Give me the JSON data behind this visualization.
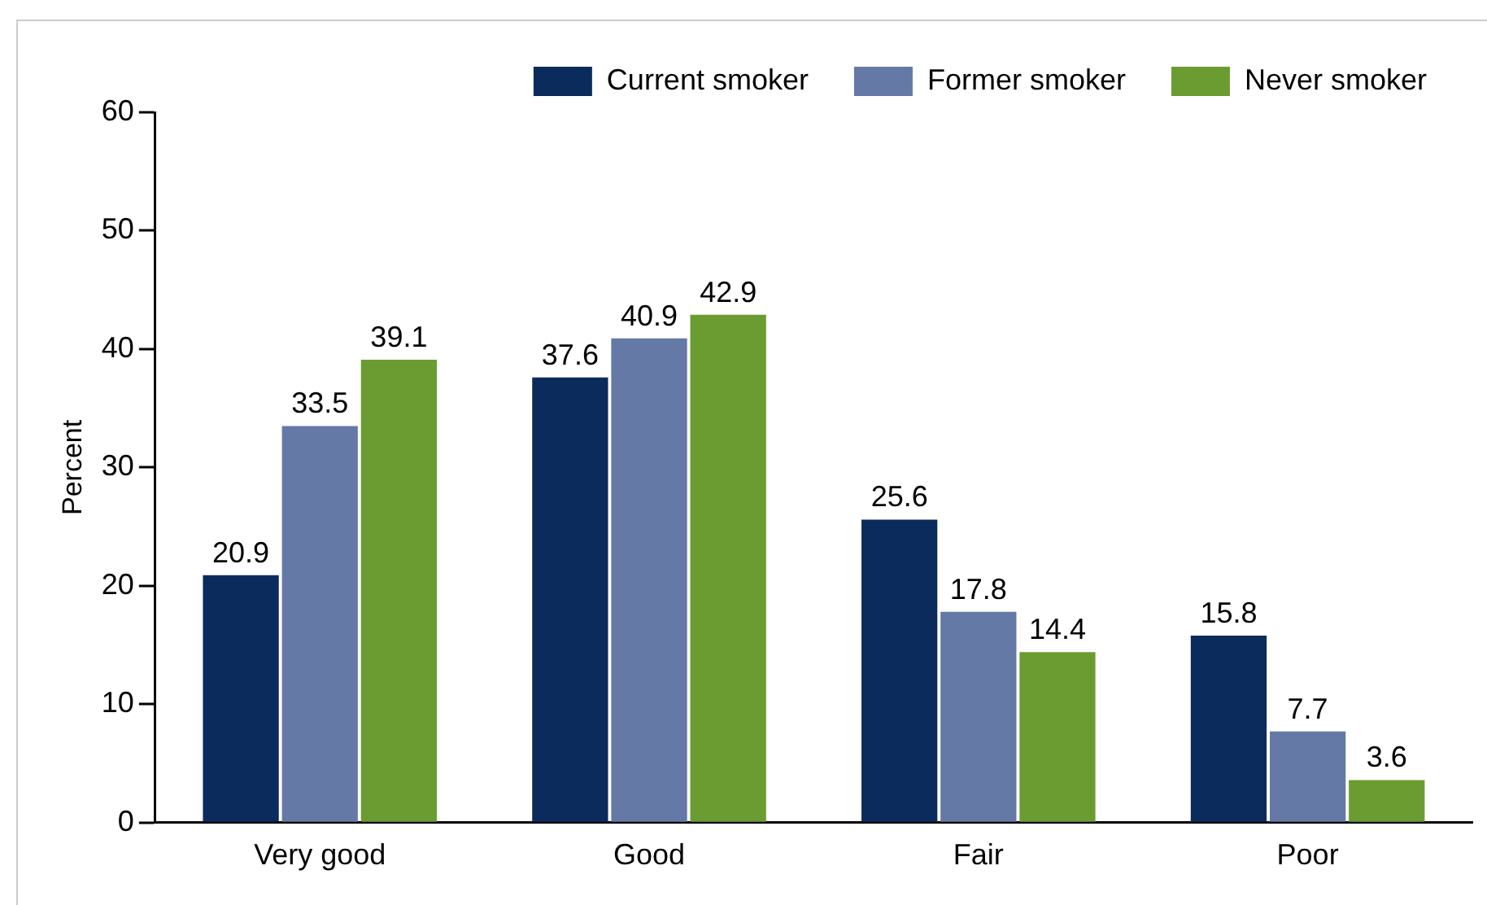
{
  "chart_data": {
    "type": "bar",
    "ylabel": "Percent",
    "categories": [
      "Very good",
      "Good",
      "Fair",
      "Poor"
    ],
    "series": [
      {
        "name": "Current smoker",
        "color": "#0a2b5c",
        "values": [
          20.9,
          37.6,
          25.6,
          15.8
        ]
      },
      {
        "name": "Former smoker",
        "color": "#6479a6",
        "values": [
          33.5,
          40.9,
          17.8,
          7.7
        ]
      },
      {
        "name": "Never smoker",
        "color": "#6b9c31",
        "values": [
          39.1,
          42.9,
          14.4,
          3.6
        ]
      }
    ],
    "ylim": [
      0,
      60
    ],
    "yticks": [
      0,
      10,
      20,
      30,
      40,
      50,
      60
    ],
    "data_labels": true,
    "legend": "top right"
  }
}
